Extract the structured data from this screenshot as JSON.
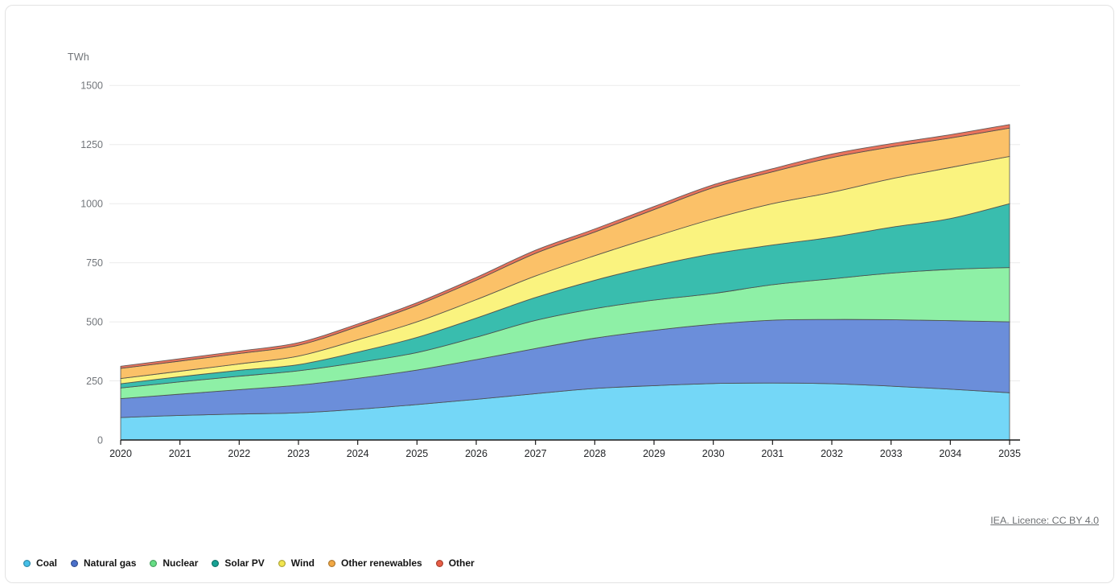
{
  "chart": {
    "unit_label": "TWh",
    "licence_text": "IEA. Licence: CC BY 4.0"
  },
  "colors": {
    "background": "#ffffff",
    "card_border": "#e3e3e3",
    "grid": "#ebebeb",
    "axis": "#1a1a1a",
    "boundary_line": "#4a4a4a",
    "y_tick_label": "#71757a",
    "x_tick_label": "#232528",
    "licence": "#6d7073"
  },
  "chart_data": {
    "type": "area",
    "stacked": true,
    "title": "",
    "xlabel": "",
    "ylabel": "TWh",
    "ylim": [
      0,
      1500
    ],
    "y_ticks": [
      0,
      250,
      500,
      750,
      1000,
      1250,
      1500
    ],
    "grid": true,
    "legend_position": "bottom-left",
    "categories": [
      "2020",
      "2021",
      "2022",
      "2023",
      "2024",
      "2025",
      "2026",
      "2027",
      "2028",
      "2029",
      "2030",
      "2031",
      "2032",
      "2033",
      "2034",
      "2035"
    ],
    "series": [
      {
        "name": "Coal",
        "color": "#74d7f7",
        "dot_color": "#45bfe8",
        "values": [
          95,
          104,
          110,
          115,
          130,
          150,
          172,
          196,
          218,
          230,
          239,
          241,
          238,
          228,
          215,
          200
        ]
      },
      {
        "name": "Natural gas",
        "color": "#6b8eda",
        "dot_color": "#4a70ca",
        "values": [
          80,
          90,
          103,
          117,
          131,
          146,
          168,
          191,
          213,
          234,
          251,
          266,
          272,
          281,
          290,
          300
        ]
      },
      {
        "name": "Nuclear",
        "color": "#8ef0a6",
        "dot_color": "#66de85",
        "values": [
          45,
          52,
          57,
          61,
          67,
          74,
          95,
          119,
          125,
          128,
          130,
          150,
          172,
          197,
          217,
          230
        ]
      },
      {
        "name": "Solar PV",
        "color": "#39bdae",
        "dot_color": "#17a294",
        "values": [
          18,
          22,
          25,
          26,
          44,
          64,
          81,
          97,
          120,
          145,
          168,
          168,
          176,
          194,
          215,
          270
        ]
      },
      {
        "name": "Wind",
        "color": "#faf37f",
        "dot_color": "#f2e54f",
        "values": [
          22,
          23,
          27,
          36,
          52,
          66,
          78,
          91,
          104,
          123,
          148,
          175,
          190,
          205,
          216,
          200
        ]
      },
      {
        "name": "Other renewables",
        "color": "#fbc168",
        "dot_color": "#f2a844",
        "values": [
          43,
          43,
          44,
          46,
          56,
          70,
          82,
          96,
          100,
          115,
          132,
          135,
          147,
          135,
          125,
          120
        ]
      },
      {
        "name": "Other",
        "color": "#e9735c",
        "dot_color": "#e85d45",
        "values": [
          9,
          10,
          10,
          11,
          11,
          11,
          12,
          13,
          13,
          13,
          12,
          13,
          15,
          14,
          14,
          15
        ]
      }
    ]
  }
}
